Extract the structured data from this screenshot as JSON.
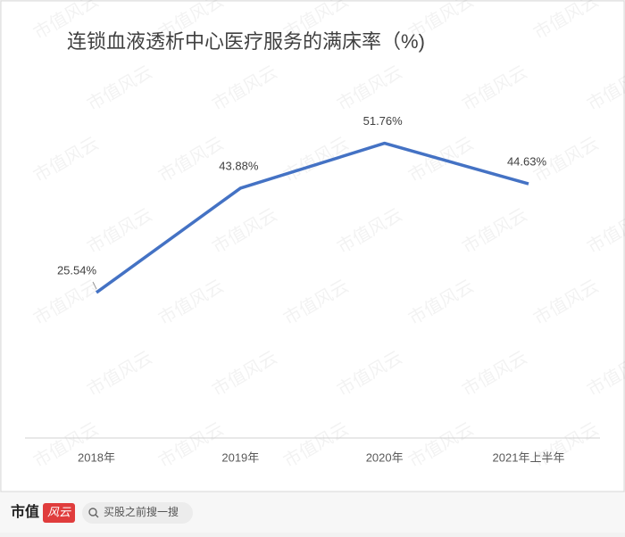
{
  "chart_data": {
    "type": "line",
    "title": "连锁血液透析中心医疗服务的满床率（%)",
    "categories": [
      "2018年",
      "2019年",
      "2020年",
      "2021年上半年"
    ],
    "values": [
      25.54,
      43.88,
      51.76,
      44.63
    ],
    "value_labels": [
      "25.54%",
      "43.88%",
      "51.76%",
      "44.63%"
    ],
    "color": "#4472c4",
    "ylim": [
      0,
      60
    ],
    "grid": false
  },
  "watermark": "市值风云",
  "footer": {
    "brand": "市值",
    "brand_badge": "风云",
    "search_placeholder": "买股之前搜一搜"
  }
}
